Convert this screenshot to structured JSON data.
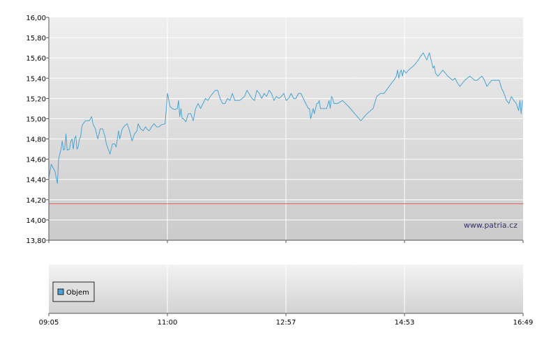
{
  "chart_data": {
    "type": "line",
    "title": "",
    "xlabel": "",
    "ylabel": "",
    "ylim": [
      13.8,
      16.0
    ],
    "y_ticks": [
      "16,00",
      "15,80",
      "15,60",
      "15,40",
      "15,20",
      "15,00",
      "14,80",
      "14,60",
      "14,40",
      "14,20",
      "14,00",
      "13,80"
    ],
    "x_ticks": [
      "09:05",
      "11:00",
      "12:57",
      "14:53",
      "16:49"
    ],
    "grid": true,
    "reference_line": {
      "value": 14.16,
      "color": "#e06060"
    },
    "series": [
      {
        "name": "",
        "color": "#4aa3d4",
        "points": [
          [
            0,
            14.42
          ],
          [
            2,
            14.55
          ],
          [
            5,
            14.48
          ],
          [
            7,
            14.36
          ],
          [
            8,
            14.6
          ],
          [
            10,
            14.7
          ],
          [
            11,
            14.78
          ],
          [
            12,
            14.69
          ],
          [
            13,
            14.7
          ],
          [
            14,
            14.85
          ],
          [
            15,
            14.69
          ],
          [
            17,
            14.7
          ],
          [
            18,
            14.78
          ],
          [
            19,
            14.8
          ],
          [
            20,
            14.7
          ],
          [
            21,
            14.8
          ],
          [
            22,
            14.83
          ],
          [
            23,
            14.7
          ],
          [
            24,
            14.72
          ],
          [
            25,
            14.8
          ],
          [
            26,
            14.82
          ],
          [
            27,
            14.92
          ],
          [
            28,
            14.95
          ],
          [
            30,
            14.98
          ],
          [
            33,
            14.98
          ],
          [
            35,
            15.02
          ],
          [
            36,
            14.95
          ],
          [
            38,
            14.9
          ],
          [
            40,
            14.8
          ],
          [
            42,
            14.9
          ],
          [
            44,
            14.9
          ],
          [
            46,
            14.82
          ],
          [
            47,
            14.75
          ],
          [
            48,
            14.72
          ],
          [
            50,
            14.65
          ],
          [
            52,
            14.75
          ],
          [
            54,
            14.75
          ],
          [
            55,
            14.72
          ],
          [
            57,
            14.88
          ],
          [
            58,
            14.8
          ],
          [
            60,
            14.9
          ],
          [
            62,
            14.93
          ],
          [
            64,
            14.95
          ],
          [
            66,
            14.88
          ],
          [
            68,
            14.78
          ],
          [
            70,
            14.85
          ],
          [
            72,
            14.88
          ],
          [
            73,
            14.95
          ],
          [
            75,
            14.9
          ],
          [
            77,
            14.88
          ],
          [
            79,
            14.92
          ],
          [
            80,
            14.9
          ],
          [
            82,
            14.88
          ],
          [
            84,
            14.92
          ],
          [
            86,
            14.95
          ],
          [
            88,
            14.92
          ],
          [
            90,
            14.92
          ],
          [
            92,
            14.94
          ],
          [
            95,
            14.95
          ],
          [
            97,
            15.25
          ],
          [
            99,
            15.12
          ],
          [
            101,
            15.1
          ],
          [
            103,
            15.09
          ],
          [
            105,
            15.1
          ],
          [
            106,
            15.18
          ],
          [
            107,
            15.02
          ],
          [
            108,
            15.1
          ],
          [
            109,
            15.0
          ],
          [
            110,
            15.0
          ],
          [
            112,
            14.97
          ],
          [
            114,
            15.05
          ],
          [
            116,
            15.05
          ],
          [
            118,
            14.98
          ],
          [
            120,
            15.1
          ],
          [
            122,
            15.15
          ],
          [
            124,
            15.1
          ],
          [
            126,
            15.15
          ],
          [
            128,
            15.2
          ],
          [
            130,
            15.18
          ],
          [
            132,
            15.22
          ],
          [
            134,
            15.25
          ],
          [
            136,
            15.28
          ],
          [
            138,
            15.28
          ],
          [
            140,
            15.2
          ],
          [
            142,
            15.15
          ],
          [
            144,
            15.15
          ],
          [
            146,
            15.2
          ],
          [
            148,
            15.18
          ],
          [
            150,
            15.25
          ],
          [
            152,
            15.18
          ],
          [
            154,
            15.18
          ],
          [
            156,
            15.18
          ],
          [
            158,
            15.2
          ],
          [
            160,
            15.22
          ],
          [
            162,
            15.28
          ],
          [
            164,
            15.24
          ],
          [
            166,
            15.2
          ],
          [
            168,
            15.18
          ],
          [
            170,
            15.28
          ],
          [
            172,
            15.25
          ],
          [
            174,
            15.2
          ],
          [
            176,
            15.25
          ],
          [
            178,
            15.22
          ],
          [
            180,
            15.28
          ],
          [
            182,
            15.25
          ],
          [
            184,
            15.18
          ],
          [
            186,
            15.22
          ],
          [
            188,
            15.2
          ],
          [
            190,
            15.22
          ],
          [
            192,
            15.25
          ],
          [
            194,
            15.18
          ],
          [
            196,
            15.2
          ],
          [
            198,
            15.25
          ],
          [
            200,
            15.2
          ],
          [
            202,
            15.2
          ],
          [
            204,
            15.25
          ],
          [
            206,
            15.25
          ],
          [
            208,
            15.2
          ],
          [
            210,
            15.15
          ],
          [
            212,
            15.1
          ],
          [
            213,
            15.1
          ],
          [
            214,
            15.0
          ],
          [
            215,
            15.05
          ],
          [
            216,
            15.1
          ],
          [
            217,
            15.05
          ],
          [
            218,
            15.1
          ],
          [
            219,
            15.15
          ],
          [
            220,
            15.15
          ],
          [
            221,
            15.18
          ],
          [
            222,
            15.1
          ],
          [
            223,
            15.1
          ],
          [
            225,
            15.1
          ],
          [
            227,
            15.1
          ],
          [
            229,
            15.18
          ],
          [
            230,
            15.1
          ],
          [
            231,
            15.22
          ],
          [
            232,
            15.2
          ],
          [
            233,
            15.15
          ],
          [
            236,
            15.15
          ],
          [
            240,
            15.18
          ],
          [
            245,
            15.12
          ],
          [
            250,
            15.05
          ],
          [
            255,
            14.98
          ],
          [
            260,
            15.05
          ],
          [
            265,
            15.1
          ],
          [
            268,
            15.22
          ],
          [
            271,
            15.25
          ],
          [
            274,
            15.25
          ],
          [
            277,
            15.3
          ],
          [
            280,
            15.35
          ],
          [
            282,
            15.38
          ],
          [
            284,
            15.42
          ],
          [
            285,
            15.48
          ],
          [
            286,
            15.4
          ],
          [
            287,
            15.45
          ],
          [
            288,
            15.48
          ],
          [
            289,
            15.42
          ],
          [
            290,
            15.48
          ],
          [
            292,
            15.45
          ],
          [
            294,
            15.48
          ],
          [
            296,
            15.5
          ],
          [
            298,
            15.52
          ],
          [
            300,
            15.55
          ],
          [
            302,
            15.58
          ],
          [
            304,
            15.62
          ],
          [
            306,
            15.65
          ],
          [
            308,
            15.6
          ],
          [
            309,
            15.58
          ],
          [
            310,
            15.62
          ],
          [
            311,
            15.65
          ],
          [
            312,
            15.6
          ],
          [
            313,
            15.55
          ],
          [
            314,
            15.5
          ],
          [
            315,
            15.52
          ],
          [
            316,
            15.45
          ],
          [
            318,
            15.42
          ],
          [
            320,
            15.45
          ],
          [
            322,
            15.48
          ],
          [
            324,
            15.45
          ],
          [
            326,
            15.42
          ],
          [
            328,
            15.4
          ],
          [
            330,
            15.38
          ],
          [
            332,
            15.4
          ],
          [
            334,
            15.35
          ],
          [
            336,
            15.32
          ],
          [
            338,
            15.35
          ],
          [
            340,
            15.38
          ],
          [
            342,
            15.4
          ],
          [
            344,
            15.42
          ],
          [
            346,
            15.4
          ],
          [
            348,
            15.38
          ],
          [
            350,
            15.38
          ],
          [
            352,
            15.4
          ],
          [
            354,
            15.42
          ],
          [
            356,
            15.38
          ],
          [
            358,
            15.32
          ],
          [
            360,
            15.35
          ],
          [
            362,
            15.38
          ],
          [
            364,
            15.38
          ],
          [
            366,
            15.38
          ],
          [
            368,
            15.38
          ],
          [
            370,
            15.3
          ],
          [
            372,
            15.25
          ],
          [
            374,
            15.18
          ],
          [
            376,
            15.15
          ],
          [
            378,
            15.22
          ],
          [
            380,
            15.18
          ],
          [
            382,
            15.15
          ],
          [
            384,
            15.08
          ],
          [
            385,
            15.18
          ],
          [
            386,
            15.05
          ],
          [
            387,
            15.18
          ]
        ]
      }
    ],
    "volume_panel": {
      "legend": [
        {
          "name": "Objem",
          "color": "#4aa3d4"
        }
      ],
      "legend_placement": "left"
    },
    "watermark": "www.patria.cz"
  }
}
